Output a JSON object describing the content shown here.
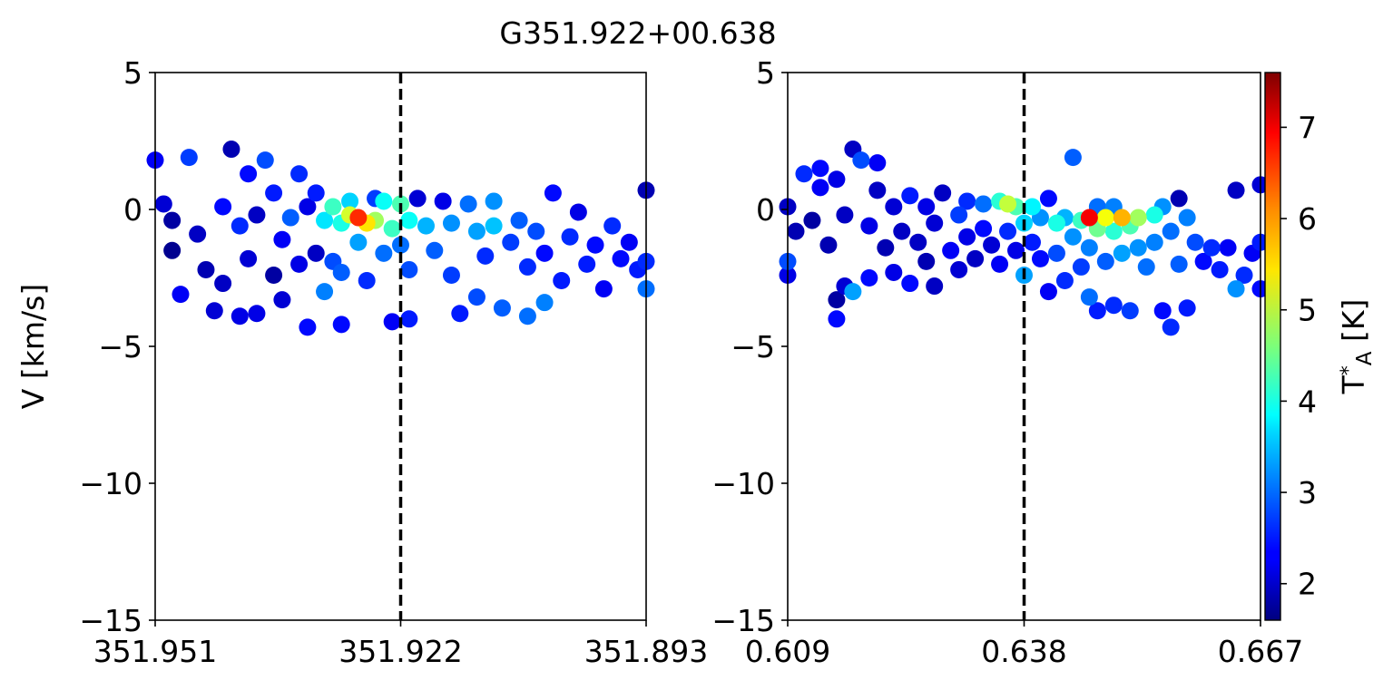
{
  "chart_data": {
    "title": "G351.922+00.638",
    "colorbar": {
      "label": "T_A^*",
      "label_main": "T",
      "label_sub": "A",
      "label_sup": "*",
      "label_unit": " [K]",
      "colormap": "jet",
      "range": [
        1.6,
        7.6
      ],
      "ticks": [
        "2",
        "3",
        "4",
        "5",
        "6",
        "7"
      ]
    },
    "panels": [
      {
        "type": "scatter",
        "xlabel": "",
        "ylabel": "V [km/s]",
        "xlim": [
          351.951,
          351.893
        ],
        "ylim": [
          -15,
          5
        ],
        "xticks": [
          "351.951",
          "351.922",
          "351.893"
        ],
        "yticks": [
          "5",
          "0",
          "−5",
          "−10",
          "−15"
        ],
        "reference_line": 351.922,
        "points": [
          [
            351.951,
            1.8,
            2.3
          ],
          [
            351.95,
            0.2,
            2.1
          ],
          [
            351.949,
            -0.4,
            1.8
          ],
          [
            351.949,
            -1.5,
            1.7
          ],
          [
            351.948,
            -3.1,
            2.3
          ],
          [
            351.947,
            1.9,
            2.7
          ],
          [
            351.946,
            -0.9,
            2.0
          ],
          [
            351.945,
            -2.2,
            1.9
          ],
          [
            351.944,
            -3.7,
            2.1
          ],
          [
            351.943,
            0.1,
            2.4
          ],
          [
            351.943,
            -2.7,
            2.0
          ],
          [
            351.942,
            2.2,
            1.9
          ],
          [
            351.941,
            -0.6,
            2.6
          ],
          [
            351.941,
            -3.9,
            2.2
          ],
          [
            351.94,
            1.3,
            2.4
          ],
          [
            351.94,
            -1.8,
            2.1
          ],
          [
            351.939,
            -0.2,
            2.0
          ],
          [
            351.939,
            -3.8,
            2.2
          ],
          [
            351.938,
            1.8,
            2.8
          ],
          [
            351.937,
            0.6,
            2.5
          ],
          [
            351.937,
            -2.4,
            1.8
          ],
          [
            351.936,
            -1.1,
            2.3
          ],
          [
            351.936,
            -3.3,
            2.1
          ],
          [
            351.935,
            -0.3,
            2.9
          ],
          [
            351.934,
            -2.0,
            2.2
          ],
          [
            351.934,
            1.3,
            2.6
          ],
          [
            351.933,
            0.1,
            2.2
          ],
          [
            351.933,
            -4.3,
            2.4
          ],
          [
            351.932,
            -1.6,
            2.0
          ],
          [
            351.932,
            0.6,
            2.5
          ],
          [
            351.931,
            -3.0,
            3.1
          ],
          [
            351.931,
            -0.4,
            3.7
          ],
          [
            351.93,
            0.1,
            4.2
          ],
          [
            351.93,
            -1.9,
            2.8
          ],
          [
            351.929,
            -0.5,
            4.0
          ],
          [
            351.929,
            -2.3,
            2.9
          ],
          [
            351.929,
            -4.2,
            2.4
          ],
          [
            351.928,
            0.3,
            3.6
          ],
          [
            351.928,
            -0.2,
            5.1
          ],
          [
            351.927,
            -1.2,
            3.3
          ],
          [
            351.927,
            -0.3,
            6.6
          ],
          [
            351.926,
            -2.6,
            2.6
          ],
          [
            351.926,
            -0.5,
            5.5
          ],
          [
            351.925,
            0.4,
            2.7
          ],
          [
            351.925,
            -0.4,
            4.8
          ],
          [
            351.924,
            -1.6,
            3.0
          ],
          [
            351.924,
            0.3,
            3.9
          ],
          [
            351.923,
            -0.7,
            4.2
          ],
          [
            351.923,
            -4.1,
            2.3
          ],
          [
            351.922,
            0.2,
            4.3
          ],
          [
            351.922,
            -1.3,
            3.0
          ],
          [
            351.921,
            -0.4,
            3.9
          ],
          [
            351.921,
            -2.2,
            2.8
          ],
          [
            351.921,
            -4.0,
            2.5
          ],
          [
            351.92,
            0.4,
            2.1
          ],
          [
            351.919,
            -0.6,
            3.4
          ],
          [
            351.918,
            -1.5,
            2.9
          ],
          [
            351.917,
            0.3,
            2.2
          ],
          [
            351.916,
            -0.5,
            3.2
          ],
          [
            351.916,
            -2.4,
            2.7
          ],
          [
            351.915,
            -3.8,
            2.5
          ],
          [
            351.914,
            0.2,
            3.0
          ],
          [
            351.913,
            -0.8,
            3.3
          ],
          [
            351.913,
            -3.2,
            2.8
          ],
          [
            351.912,
            -1.7,
            2.6
          ],
          [
            351.911,
            0.3,
            3.2
          ],
          [
            351.911,
            -0.6,
            3.5
          ],
          [
            351.91,
            -3.6,
            2.9
          ],
          [
            351.909,
            -1.2,
            2.7
          ],
          [
            351.908,
            -0.4,
            2.9
          ],
          [
            351.907,
            -2.1,
            2.6
          ],
          [
            351.907,
            -3.9,
            3.0
          ],
          [
            351.906,
            -0.8,
            2.8
          ],
          [
            351.905,
            -1.6,
            2.4
          ],
          [
            351.905,
            -3.4,
            3.1
          ],
          [
            351.904,
            0.6,
            2.4
          ],
          [
            351.903,
            -2.6,
            2.5
          ],
          [
            351.902,
            -1.0,
            2.6
          ],
          [
            351.901,
            -0.1,
            2.2
          ],
          [
            351.9,
            -2.0,
            2.5
          ],
          [
            351.899,
            -1.3,
            2.4
          ],
          [
            351.898,
            -2.9,
            2.3
          ],
          [
            351.897,
            -0.6,
            2.6
          ],
          [
            351.896,
            -1.8,
            2.4
          ],
          [
            351.895,
            -1.2,
            2.3
          ],
          [
            351.894,
            -2.2,
            2.5
          ],
          [
            351.893,
            0.7,
            1.9
          ],
          [
            351.893,
            -1.9,
            2.6
          ],
          [
            351.893,
            -2.9,
            3.0
          ]
        ]
      },
      {
        "type": "scatter",
        "xlabel": "",
        "ylabel": "",
        "xlim": [
          0.609,
          0.667
        ],
        "ylim": [
          -15,
          5
        ],
        "xticks": [
          "0.609",
          "0.638",
          "0.667"
        ],
        "yticks": [
          "5",
          "0",
          "−5",
          "−10",
          "−15"
        ],
        "reference_line": 0.638,
        "points": [
          [
            0.609,
            0.1,
            2.0
          ],
          [
            0.609,
            -1.9,
            2.8
          ],
          [
            0.609,
            -2.4,
            2.2
          ],
          [
            0.61,
            -0.8,
            1.9
          ],
          [
            0.611,
            1.3,
            2.6
          ],
          [
            0.612,
            -0.4,
            1.8
          ],
          [
            0.613,
            1.5,
            2.4
          ],
          [
            0.613,
            0.8,
            2.3
          ],
          [
            0.614,
            -1.3,
            1.9
          ],
          [
            0.615,
            1.1,
            2.2
          ],
          [
            0.615,
            -3.3,
            1.8
          ],
          [
            0.615,
            -4.0,
            2.4
          ],
          [
            0.616,
            -0.2,
            2.0
          ],
          [
            0.616,
            -2.8,
            2.1
          ],
          [
            0.617,
            2.2,
            2.0
          ],
          [
            0.617,
            -3.0,
            3.3
          ],
          [
            0.618,
            1.8,
            2.8
          ],
          [
            0.619,
            -0.6,
            2.2
          ],
          [
            0.619,
            -2.5,
            2.4
          ],
          [
            0.62,
            1.7,
            2.3
          ],
          [
            0.62,
            0.7,
            2.0
          ],
          [
            0.621,
            -1.4,
            1.9
          ],
          [
            0.622,
            0.1,
            2.1
          ],
          [
            0.622,
            -2.3,
            2.2
          ],
          [
            0.623,
            -0.8,
            2.0
          ],
          [
            0.624,
            0.5,
            2.5
          ],
          [
            0.624,
            -2.7,
            2.4
          ],
          [
            0.625,
            -1.2,
            2.0
          ],
          [
            0.626,
            0.1,
            2.2
          ],
          [
            0.626,
            -1.9,
            1.9
          ],
          [
            0.627,
            -0.5,
            2.1
          ],
          [
            0.627,
            -2.8,
            2.0
          ],
          [
            0.628,
            0.6,
            2.0
          ],
          [
            0.629,
            -1.5,
            2.3
          ],
          [
            0.63,
            -0.2,
            2.7
          ],
          [
            0.63,
            -2.2,
            2.1
          ],
          [
            0.631,
            0.3,
            2.6
          ],
          [
            0.631,
            -1.0,
            2.2
          ],
          [
            0.632,
            -1.8,
            2.0
          ],
          [
            0.633,
            0.2,
            3.0
          ],
          [
            0.633,
            -0.7,
            2.4
          ],
          [
            0.634,
            -1.3,
            2.1
          ],
          [
            0.635,
            0.3,
            4.1
          ],
          [
            0.635,
            -2.0,
            2.3
          ],
          [
            0.636,
            0.2,
            5.0
          ],
          [
            0.636,
            -0.8,
            2.6
          ],
          [
            0.637,
            -1.5,
            2.2
          ],
          [
            0.637,
            0.1,
            4.3
          ],
          [
            0.638,
            -0.5,
            3.6
          ],
          [
            0.638,
            -2.4,
            3.3
          ],
          [
            0.639,
            0.1,
            3.8
          ],
          [
            0.639,
            -1.2,
            2.5
          ],
          [
            0.64,
            -0.3,
            3.2
          ],
          [
            0.64,
            -1.8,
            2.4
          ],
          [
            0.641,
            0.4,
            2.4
          ],
          [
            0.641,
            -3.0,
            2.3
          ],
          [
            0.642,
            -0.5,
            4.0
          ],
          [
            0.642,
            -1.6,
            2.8
          ],
          [
            0.643,
            -0.3,
            3.4
          ],
          [
            0.643,
            -2.6,
            2.6
          ],
          [
            0.644,
            1.9,
            2.9
          ],
          [
            0.644,
            -1.0,
            3.2
          ],
          [
            0.645,
            -0.4,
            4.2
          ],
          [
            0.645,
            -2.1,
            2.7
          ],
          [
            0.646,
            -0.3,
            6.9
          ],
          [
            0.646,
            -1.4,
            3.1
          ],
          [
            0.646,
            -3.2,
            3.0
          ],
          [
            0.647,
            0.1,
            3.0
          ],
          [
            0.647,
            -0.7,
            4.5
          ],
          [
            0.647,
            -3.7,
            2.5
          ],
          [
            0.648,
            -0.3,
            5.3
          ],
          [
            0.648,
            -1.9,
            2.9
          ],
          [
            0.649,
            0.1,
            3.1
          ],
          [
            0.649,
            -0.8,
            4.1
          ],
          [
            0.649,
            -3.5,
            2.6
          ],
          [
            0.65,
            -0.3,
            5.8
          ],
          [
            0.65,
            -1.6,
            3.3
          ],
          [
            0.651,
            -0.6,
            4.3
          ],
          [
            0.651,
            -3.7,
            2.7
          ],
          [
            0.652,
            -0.3,
            4.8
          ],
          [
            0.652,
            -1.4,
            3.2
          ],
          [
            0.653,
            -2.1,
            3.0
          ],
          [
            0.654,
            -0.2,
            4.0
          ],
          [
            0.654,
            -1.2,
            3.1
          ],
          [
            0.655,
            0.1,
            3.2
          ],
          [
            0.655,
            -3.7,
            2.4
          ],
          [
            0.656,
            -0.8,
            3.0
          ],
          [
            0.656,
            -4.3,
            2.6
          ],
          [
            0.657,
            0.4,
            1.9
          ],
          [
            0.657,
            -2.0,
            2.9
          ],
          [
            0.658,
            -0.3,
            3.1
          ],
          [
            0.658,
            -3.6,
            2.5
          ],
          [
            0.659,
            -1.2,
            2.8
          ],
          [
            0.66,
            -1.9,
            2.4
          ],
          [
            0.661,
            -1.4,
            2.6
          ],
          [
            0.662,
            -2.2,
            2.5
          ],
          [
            0.663,
            -1.4,
            2.3
          ],
          [
            0.664,
            0.7,
            2.0
          ],
          [
            0.664,
            -2.9,
            3.2
          ],
          [
            0.665,
            -2.4,
            2.6
          ],
          [
            0.666,
            -1.6,
            2.3
          ],
          [
            0.667,
            0.9,
            2.1
          ],
          [
            0.667,
            -1.2,
            2.5
          ],
          [
            0.667,
            -2.9,
            2.4
          ]
        ]
      }
    ]
  }
}
